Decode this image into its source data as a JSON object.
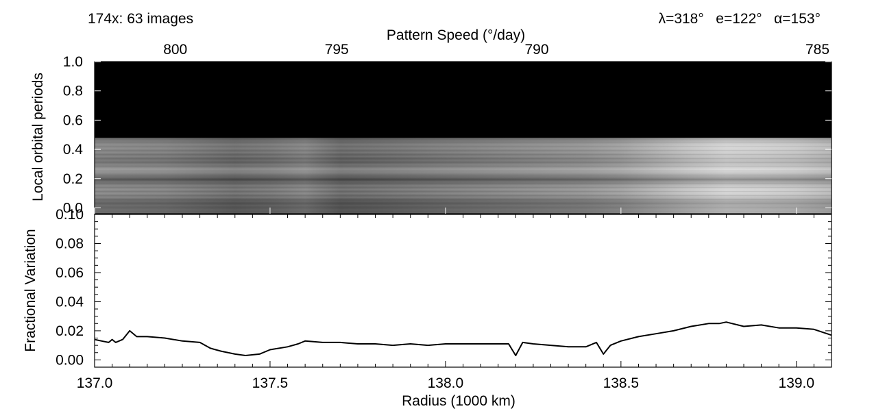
{
  "header": {
    "image_count": "174x: 63 images",
    "geometry": "λ=318°   e=122°   α=153°"
  },
  "chart_data": [
    {
      "type": "heatmap",
      "title": "",
      "top_axis": {
        "label": "Pattern Speed (°/day)",
        "ticks": [
          {
            "value": 800,
            "radius": 137.23,
            "label": "800"
          },
          {
            "value": 795,
            "radius": 137.69,
            "label": "795"
          },
          {
            "value": 790,
            "radius": 138.26,
            "label": "790"
          },
          {
            "value": 785,
            "radius": 139.06,
            "label": "785"
          }
        ]
      },
      "xlim": [
        137.0,
        139.1
      ],
      "ylim": [
        -0.04,
        1.0
      ],
      "ylabel": "Local orbital periods",
      "yticks": [
        0.0,
        0.2,
        0.4,
        0.6,
        0.8,
        1.0
      ],
      "ytick_labels": [
        "0.0",
        "0.2",
        "0.4",
        "0.6",
        "0.8",
        "1.0"
      ],
      "data_range": [
        -0.04,
        0.48
      ],
      "masked_region": [
        0.48,
        1.0
      ],
      "colormap": "grayscale",
      "masked_color": "#000000",
      "radial_profile": {
        "x": [
          137.0,
          137.2,
          137.4,
          137.5,
          137.6,
          137.7,
          137.8,
          138.0,
          138.2,
          138.4,
          138.5,
          138.6,
          138.7,
          138.8,
          138.9,
          139.0,
          139.1
        ],
        "brightness": [
          0.45,
          0.42,
          0.32,
          0.36,
          0.43,
          0.3,
          0.33,
          0.4,
          0.46,
          0.52,
          0.58,
          0.68,
          0.78,
          0.86,
          0.84,
          0.8,
          0.72
        ]
      }
    },
    {
      "type": "line",
      "title": "",
      "xlabel": "Radius (1000 km)",
      "ylabel": "Fractional Variation",
      "xlim": [
        137.0,
        139.1
      ],
      "ylim": [
        -0.005,
        0.1
      ],
      "xticks": [
        137.0,
        137.5,
        138.0,
        138.5,
        139.0
      ],
      "xtick_labels": [
        "137.0",
        "137.5",
        "138.0",
        "138.5",
        "139.0"
      ],
      "yticks": [
        0.0,
        0.02,
        0.04,
        0.06,
        0.08,
        0.1
      ],
      "ytick_labels": [
        "0.00",
        "0.02",
        "0.04",
        "0.06",
        "0.08",
        "0.10"
      ],
      "series": [
        {
          "x": [
            137.0,
            137.02,
            137.04,
            137.05,
            137.06,
            137.08,
            137.1,
            137.12,
            137.15,
            137.2,
            137.25,
            137.3,
            137.33,
            137.36,
            137.4,
            137.43,
            137.47,
            137.5,
            137.55,
            137.58,
            137.6,
            137.65,
            137.7,
            137.75,
            137.8,
            137.85,
            137.9,
            137.95,
            138.0,
            138.05,
            138.1,
            138.15,
            138.18,
            138.2,
            138.22,
            138.25,
            138.3,
            138.35,
            138.4,
            138.43,
            138.45,
            138.47,
            138.5,
            138.55,
            138.6,
            138.65,
            138.7,
            138.75,
            138.78,
            138.8,
            138.85,
            138.9,
            138.95,
            139.0,
            139.05,
            139.1
          ],
          "y": [
            0.014,
            0.013,
            0.012,
            0.014,
            0.012,
            0.014,
            0.02,
            0.016,
            0.016,
            0.015,
            0.013,
            0.012,
            0.008,
            0.006,
            0.004,
            0.003,
            0.004,
            0.007,
            0.009,
            0.011,
            0.013,
            0.012,
            0.012,
            0.011,
            0.011,
            0.01,
            0.011,
            0.01,
            0.011,
            0.011,
            0.011,
            0.011,
            0.011,
            0.003,
            0.012,
            0.011,
            0.01,
            0.009,
            0.009,
            0.012,
            0.004,
            0.01,
            0.013,
            0.016,
            0.018,
            0.02,
            0.023,
            0.025,
            0.025,
            0.026,
            0.023,
            0.024,
            0.022,
            0.022,
            0.021,
            0.017
          ]
        }
      ]
    }
  ]
}
